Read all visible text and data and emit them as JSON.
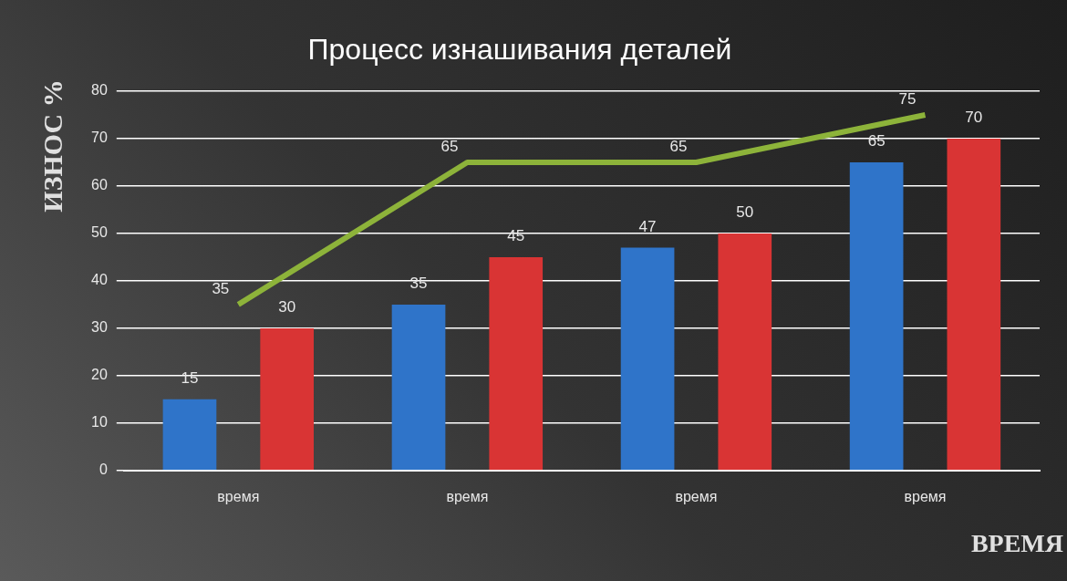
{
  "chart_data": {
    "type": "bar",
    "title": "Процесс изнашивания деталей",
    "xlabel": "ВРЕМЯ",
    "ylabel": "ИЗНОС %",
    "categories": [
      "время",
      "время",
      "время",
      "время"
    ],
    "series": [
      {
        "color": "#2f74c9",
        "values": [
          15,
          35,
          47,
          65
        ]
      },
      {
        "color": "#d93434",
        "values": [
          30,
          45,
          50,
          70
        ]
      },
      {
        "type": "line",
        "color": "#8db33a",
        "values": [
          35,
          65,
          65,
          75
        ]
      }
    ],
    "ylim": [
      0,
      80
    ],
    "yticks": [
      0,
      10,
      20,
      30,
      40,
      50,
      60,
      70,
      80
    ],
    "grid": "y",
    "legend": false,
    "data_labels": true,
    "marker": "none"
  }
}
